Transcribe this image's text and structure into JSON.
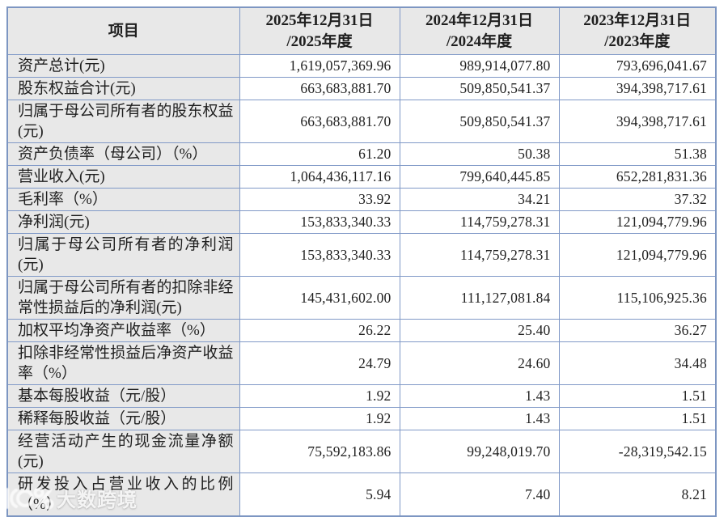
{
  "table": {
    "border_color": "#8099c7",
    "header_bg": "#e8e8e8",
    "label_bg": "#e8e8e8",
    "header": {
      "item": "项目",
      "y2025_line1": "2025年12月31日",
      "y2025_line2": "/2025年度",
      "y2024_line1": "2024年12月31日",
      "y2024_line2": "/2024年度",
      "y2023_line1": "2023年12月31日",
      "y2023_line2": "/2023年度"
    },
    "rows": [
      {
        "label": "资产总计(元)",
        "v2025": "1,619,057,369.96",
        "v2024": "989,914,077.80",
        "v2023": "793,696,041.67"
      },
      {
        "label": "股东权益合计(元)",
        "v2025": "663,683,881.70",
        "v2024": "509,850,541.37",
        "v2023": "394,398,717.61"
      },
      {
        "label": "归属于母公司所有者的股东权益(元)",
        "v2025": "663,683,881.70",
        "v2024": "509,850,541.37",
        "v2023": "394,398,717.61"
      },
      {
        "label": "资产负债率（母公司）（%）",
        "v2025": "61.20",
        "v2024": "50.38",
        "v2023": "51.38"
      },
      {
        "label": "营业收入(元)",
        "v2025": "1,064,436,117.16",
        "v2024": "799,640,445.85",
        "v2023": "652,281,831.36"
      },
      {
        "label": "毛利率（%）",
        "v2025": "33.92",
        "v2024": "34.21",
        "v2023": "37.32"
      },
      {
        "label": "净利润(元)",
        "v2025": "153,833,340.33",
        "v2024": "114,759,278.31",
        "v2023": "121,094,779.96"
      },
      {
        "label": "归属于母公司所有者的净利润(元)",
        "v2025": "153,833,340.33",
        "v2024": "114,759,278.31",
        "v2023": "121,094,779.96"
      },
      {
        "label": "归属于母公司所有者的扣除非经常性损益后的净利润(元)",
        "v2025": "145,431,602.00",
        "v2024": "111,127,081.84",
        "v2023": "115,106,925.36"
      },
      {
        "label": "加权平均净资产收益率（%）",
        "v2025": "26.22",
        "v2024": "25.40",
        "v2023": "36.27"
      },
      {
        "label": "扣除非经常性损益后净资产收益率（%）",
        "v2025": "24.79",
        "v2024": "24.60",
        "v2023": "34.48"
      },
      {
        "label": "基本每股收益（元/股）",
        "v2025": "1.92",
        "v2024": "1.43",
        "v2023": "1.51"
      },
      {
        "label": "稀释每股收益（元/股）",
        "v2025": "1.92",
        "v2024": "1.43",
        "v2023": "1.51"
      },
      {
        "label": "经营活动产生的现金流量净额(元)",
        "v2025": "75,592,183.86",
        "v2024": "99,248,019.70",
        "v2023": "-28,319,542.15"
      },
      {
        "label": "研发投入占营业收入的比例（%）",
        "v2025": "5.94",
        "v2024": "7.40",
        "v2023": "8.21"
      }
    ]
  },
  "watermark": {
    "text": "大数跨境"
  }
}
